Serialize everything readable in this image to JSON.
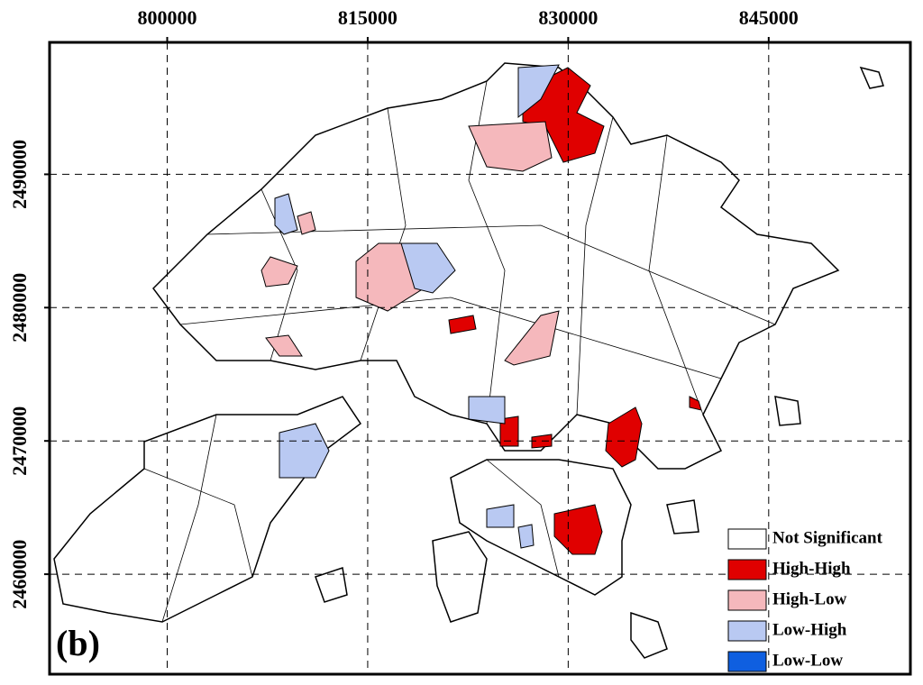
{
  "chart_data": {
    "type": "map",
    "panel_label": "(b)",
    "xlim": [
      791200,
      855600
    ],
    "xticks": [
      800000,
      815000,
      830000,
      845000
    ],
    "ylim": [
      2452500,
      2499900
    ],
    "yticks": [
      2490000,
      2480000,
      2470000,
      2460000
    ],
    "grid": true,
    "legend": {
      "position": "lower right",
      "items": [
        {
          "name": "Not Significant",
          "color": "#ffffff"
        },
        {
          "name": "High-High",
          "color": "#e00000"
        },
        {
          "name": "High-Low",
          "color": "#f5b8bc"
        },
        {
          "name": "Low-High",
          "color": "#b9c9f2"
        },
        {
          "name": "Low-Low",
          "color": "#0f5fe0"
        }
      ]
    }
  }
}
